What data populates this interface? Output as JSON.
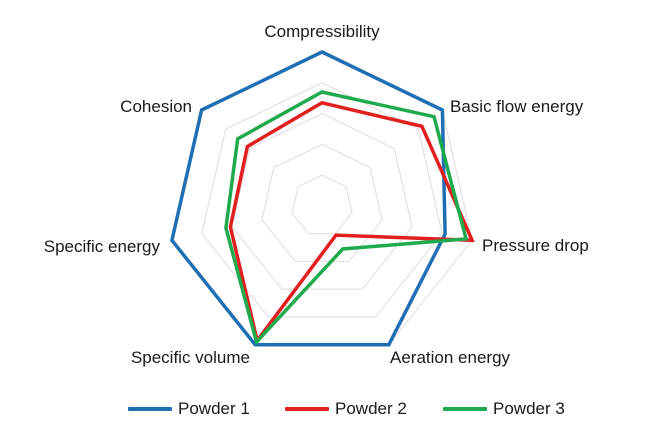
{
  "chart_data": {
    "type": "radar",
    "axes": [
      "Compressibility",
      "Basic flow energy",
      "Pressure drop",
      "Aeration energy",
      "Specific volume",
      "Specific energy",
      "Cohesion"
    ],
    "rlim": [
      0,
      1
    ],
    "rings": 5,
    "grid": true,
    "legend_position": "bottom",
    "series": [
      {
        "name": "Powder 1",
        "color": "#1f6fb5",
        "values": [
          1.0,
          1.0,
          0.82,
          1.0,
          1.0,
          1.0,
          1.0
        ]
      },
      {
        "name": "Powder 2",
        "color": "#e21f1f",
        "values": [
          0.67,
          0.83,
          1.0,
          0.21,
          0.97,
          0.61,
          0.62
        ]
      },
      {
        "name": "Powder 3",
        "color": "#1faa4e",
        "values": [
          0.74,
          0.93,
          0.96,
          0.31,
          0.98,
          0.64,
          0.7
        ]
      }
    ]
  }
}
